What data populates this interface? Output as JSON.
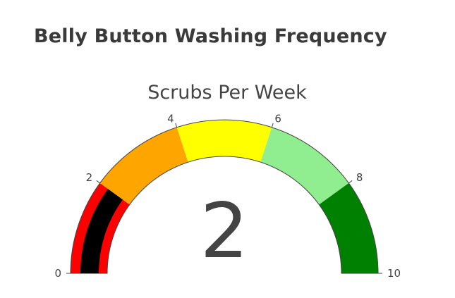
{
  "page": {
    "heading": "Belly Button Washing Frequency"
  },
  "chart_data": {
    "type": "gauge",
    "title": "Scrubs Per Week",
    "value": 2,
    "range": [
      0,
      10
    ],
    "tick_values": [
      0,
      2,
      4,
      6,
      8,
      10
    ],
    "tick_labels": [
      "0",
      "2",
      "4",
      "6",
      "8",
      "10"
    ],
    "bar_color": "#000000",
    "steps": [
      {
        "range": [
          0,
          2
        ],
        "color": "#ff0000"
      },
      {
        "range": [
          2,
          4
        ],
        "color": "#ffa500"
      },
      {
        "range": [
          4,
          6
        ],
        "color": "#ffff00"
      },
      {
        "range": [
          6,
          8
        ],
        "color": "#90ee90"
      },
      {
        "range": [
          8,
          10
        ],
        "color": "#008000"
      }
    ],
    "outline_color": "#444444"
  }
}
